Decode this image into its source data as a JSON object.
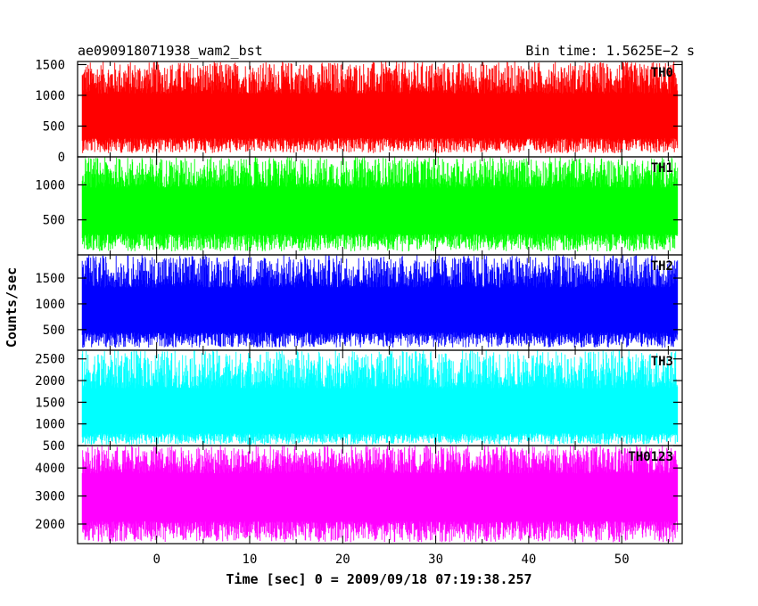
{
  "header": {
    "title": "ae090918071938_wam2_bst",
    "bin_time": "Bin time: 1.5625E−2 s"
  },
  "chart_data": {
    "type": "line",
    "title": "ae090918071938_wam2_bst",
    "xlabel": "Time [sec] 0 = 2009/09/18 07:19:38.257",
    "ylabel": "Counts/sec",
    "xlim": [
      -8.5,
      56.5
    ],
    "x_ticks": [
      0,
      10,
      20,
      30,
      40,
      50
    ],
    "x_tick_labels": [
      "0",
      "10",
      "20",
      "30",
      "40",
      "50"
    ],
    "data_range": [
      -8,
      56
    ],
    "bin_time": 0.015625,
    "grid": false,
    "panels": [
      {
        "name": "TH0",
        "color": "#ff0000",
        "ylim": [
          0,
          1550
        ],
        "yticks": [
          0,
          500,
          1000,
          1500
        ],
        "ytick_labels": [
          "0",
          "500",
          "1000",
          "1500"
        ],
        "baseline": 600,
        "series_min": 60,
        "series_max": 1550
      },
      {
        "name": "TH1",
        "color": "#00ff00",
        "ylim": [
          0,
          1400
        ],
        "yticks": [
          500,
          1000
        ],
        "ytick_labels": [
          "500",
          "1000"
        ],
        "baseline": 600,
        "series_min": 50,
        "series_max": 1400
      },
      {
        "name": "TH2",
        "color": "#0000ff",
        "ylim": [
          100,
          1950
        ],
        "yticks": [
          500,
          1000,
          1500
        ],
        "ytick_labels": [
          "500",
          "1000",
          "1500"
        ],
        "baseline": 800,
        "series_min": 150,
        "series_max": 1950
      },
      {
        "name": "TH3",
        "color": "#00ffff",
        "ylim": [
          500,
          2700
        ],
        "yticks": [
          500,
          1000,
          1500,
          2000,
          2500
        ],
        "ytick_labels": [
          "500",
          "1000",
          "1500",
          "2000",
          "2500"
        ],
        "baseline": 1100,
        "series_min": 520,
        "series_max": 2700
      },
      {
        "name": "TH0123",
        "color": "#ff00ff",
        "ylim": [
          1300,
          4800
        ],
        "yticks": [
          2000,
          3000,
          4000
        ],
        "ytick_labels": [
          "2000",
          "3000",
          "4000"
        ],
        "baseline": 3000,
        "series_min": 1350,
        "series_max": 4800
      }
    ]
  }
}
